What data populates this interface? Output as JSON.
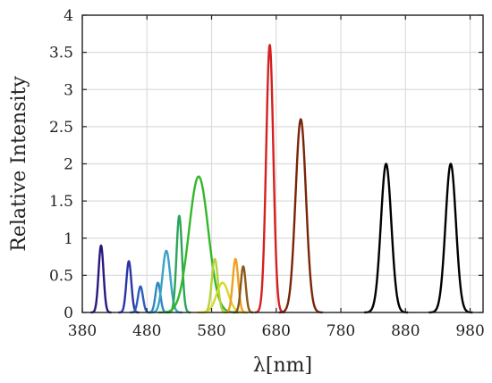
{
  "chart_data": {
    "type": "line",
    "title": "",
    "xlabel": "λ[nm]",
    "ylabel": "Relative Intensity",
    "xlim": [
      380,
      1000
    ],
    "ylim": [
      0,
      4
    ],
    "x_ticks": [
      380,
      480,
      580,
      680,
      780,
      880,
      980
    ],
    "y_ticks": [
      0,
      0.5,
      1,
      1.5,
      2,
      2.5,
      3,
      3.5,
      4
    ],
    "y_tick_labels": [
      "0",
      "0.5",
      "1",
      "1.5",
      "2",
      "2.5",
      "3",
      "3.5",
      "4"
    ],
    "grid": true,
    "legend": false,
    "series": [
      {
        "peak_nm": 409,
        "peak": 0.9,
        "fwhm_nm": 9,
        "color": "#2b1680"
      },
      {
        "peak_nm": 452,
        "peak": 0.69,
        "fwhm_nm": 9,
        "color": "#2a34a8"
      },
      {
        "peak_nm": 470,
        "peak": 0.35,
        "fwhm_nm": 9,
        "color": "#2c5ec0"
      },
      {
        "peak_nm": 497,
        "peak": 0.4,
        "fwhm_nm": 9,
        "color": "#2f86c4"
      },
      {
        "peak_nm": 510,
        "peak": 0.83,
        "fwhm_nm": 14,
        "color": "#36a4c6"
      },
      {
        "peak_nm": 530,
        "peak": 1.3,
        "fwhm_nm": 10,
        "color": "#2aa55a"
      },
      {
        "peak_nm": 560,
        "peak": 1.83,
        "fwhm_nm": 35,
        "color": "#33b82a"
      },
      {
        "peak_nm": 585,
        "peak": 0.72,
        "fwhm_nm": 11,
        "color": "#b6d23a"
      },
      {
        "peak_nm": 597,
        "peak": 0.4,
        "fwhm_nm": 22,
        "color": "#d7d92a"
      },
      {
        "peak_nm": 617,
        "peak": 0.72,
        "fwhm_nm": 10,
        "color": "#f0a020"
      },
      {
        "peak_nm": 629,
        "peak": 0.62,
        "fwhm_nm": 9,
        "color": "#8c5a18"
      },
      {
        "peak_nm": 670,
        "peak": 3.6,
        "fwhm_nm": 13,
        "color": "#d42020"
      },
      {
        "peak_nm": 718,
        "peak": 2.6,
        "fwhm_nm": 19,
        "color": "#7a2408"
      },
      {
        "peak_nm": 850,
        "peak": 2.0,
        "fwhm_nm": 19,
        "color": "#000000"
      },
      {
        "peak_nm": 950,
        "peak": 2.0,
        "fwhm_nm": 19,
        "color": "#000000"
      }
    ]
  }
}
